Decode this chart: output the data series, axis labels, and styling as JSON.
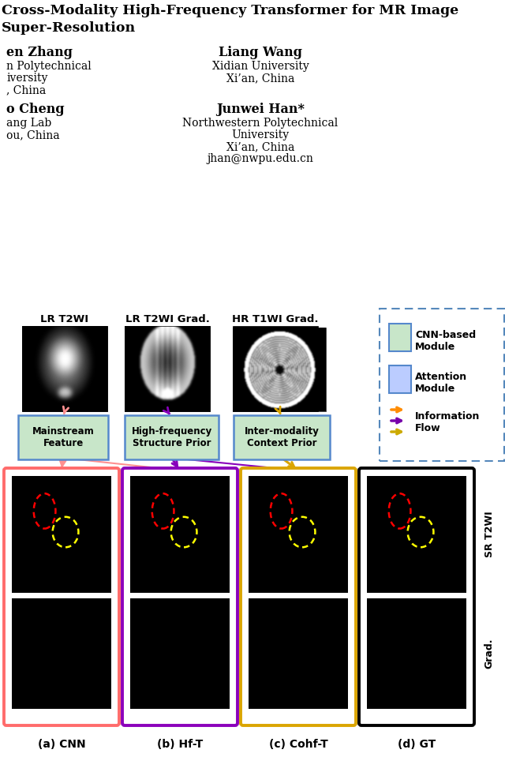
{
  "fig_w": 6.4,
  "fig_h": 9.59,
  "dpi": 100,
  "title_line1": "Cross-Modality High-Frequency Transformer for MR Image",
  "title_line2": "Super-Resolution",
  "author_left_1_name": "en Zhang",
  "author_left_1_aff": [
    "n Polytechnical",
    "iversity",
    ", China"
  ],
  "author_right_1_name": "Liang Wang",
  "author_right_1_aff": [
    "Xidian University",
    "Xi’an, China"
  ],
  "author_left_2_name": "o Cheng",
  "author_left_2_aff": [
    "ang Lab",
    "ou, China"
  ],
  "author_right_2_name": "Junwei Han*",
  "author_right_2_aff": [
    "Northwestern Polytechnical",
    "University",
    "Xi’an, China",
    "jhan@nwpu.edu.cn"
  ],
  "input_labels": [
    "LR T2WI",
    "LR T2WI Grad.",
    "HR T1WI Grad."
  ],
  "box_labels": [
    "Mainstream\nFeature",
    "High-frequency\nStructure Prior",
    "Inter-modality\nContext Prior"
  ],
  "output_labels": [
    "(a) CNN",
    "(b) Hf-T",
    "(c) Cohf-T",
    "(d) GT"
  ],
  "side_label_top": "SR T2WI",
  "side_label_bot": "Grad.",
  "legend_items": [
    {
      "label": "CNN-based\nModule",
      "type": "box",
      "facecolor": "#C8E6C9",
      "edgecolor": "#5588CC"
    },
    {
      "label": "Attention\nModule",
      "type": "box",
      "facecolor": "#BBCCFF",
      "edgecolor": "#5588CC"
    },
    {
      "label": "Information\nFlow",
      "type": "arrows",
      "colors": [
        "#FF8C00",
        "#7700AA",
        "#CCAA00"
      ]
    }
  ],
  "colors": {
    "cnn_border": "#FF6B6B",
    "hft_border": "#8B00BB",
    "cohft_border": "#DAA500",
    "gt_border": "#000000",
    "feature_box_bg": "#C8E6C9",
    "feature_box_border": "#5588CC",
    "arrow_pink": "#FF9090",
    "arrow_purple": "#8800BB",
    "arrow_orange": "#DAA500",
    "legend_outer_border": "#5588BB",
    "bg": "#FFFFFF"
  }
}
